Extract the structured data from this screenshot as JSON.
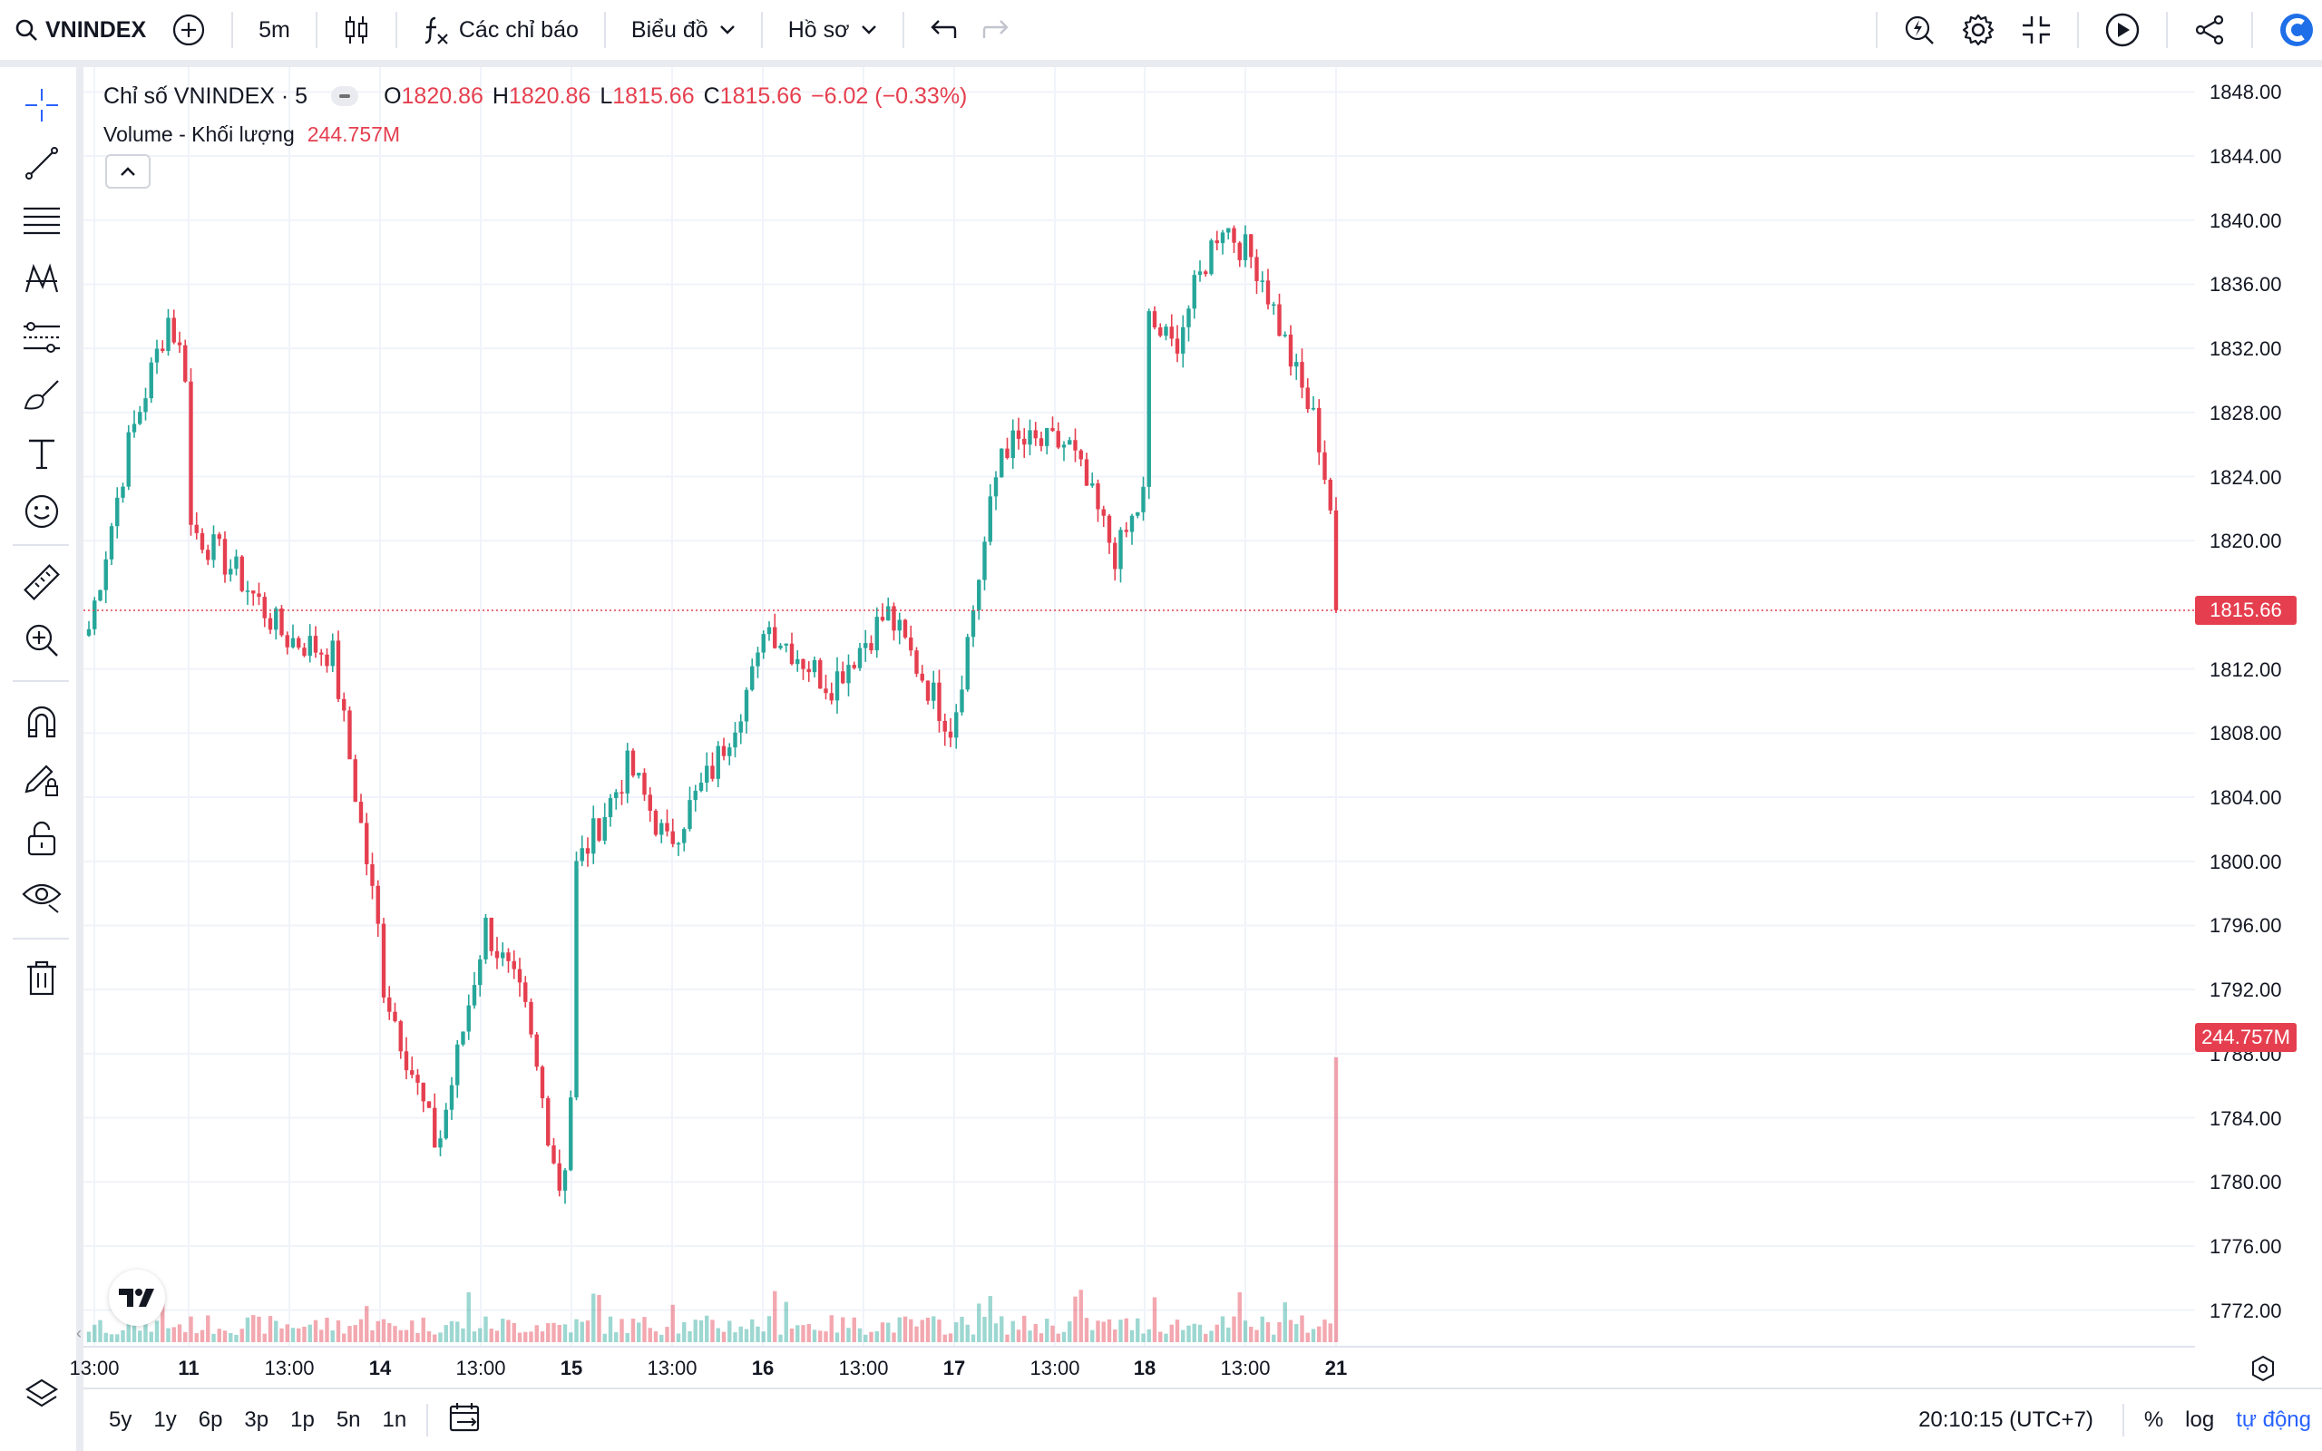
{
  "toolbar": {
    "symbol": "VNINDEX",
    "interval": "5m",
    "indicators_label": "Các chỉ báo",
    "chart_label": "Biểu đồ",
    "profile_label": "Hồ sơ"
  },
  "legend": {
    "title": "Chỉ số VNINDEX · 5",
    "open_label": "O",
    "open": "1820.86",
    "high_label": "H",
    "high": "1820.86",
    "low_label": "L",
    "low": "1815.66",
    "close_label": "C",
    "close": "1815.66",
    "change": "−6.02 (−0.33%)",
    "volume_label": "Volume - Khối lượng",
    "volume_value": "244.757M"
  },
  "price_axis": {
    "labels": [
      "1848.00",
      "1844.00",
      "1840.00",
      "1836.00",
      "1832.00",
      "1828.00",
      "1824.00",
      "1820.00",
      "1812.00",
      "1808.00",
      "1804.00",
      "1800.00",
      "1796.00",
      "1792.00",
      "1788.00",
      "1784.00",
      "1780.00",
      "1776.00",
      "1772.00"
    ],
    "last_price_tag": "1815.66",
    "volume_tag": "244.757M"
  },
  "time_axis": {
    "labels": [
      {
        "text": "13:00",
        "bold": false
      },
      {
        "text": "11",
        "bold": true
      },
      {
        "text": "13:00",
        "bold": false
      },
      {
        "text": "14",
        "bold": true
      },
      {
        "text": "13:00",
        "bold": false
      },
      {
        "text": "15",
        "bold": true
      },
      {
        "text": "13:00",
        "bold": false
      },
      {
        "text": "16",
        "bold": true
      },
      {
        "text": "13:00",
        "bold": false
      },
      {
        "text": "17",
        "bold": true
      },
      {
        "text": "13:00",
        "bold": false
      },
      {
        "text": "18",
        "bold": true
      },
      {
        "text": "13:00",
        "bold": false
      },
      {
        "text": "21",
        "bold": true
      }
    ]
  },
  "bottombar": {
    "ranges": [
      "5y",
      "1y",
      "6p",
      "3p",
      "1p",
      "5n",
      "1n"
    ],
    "clock": "20:10:15 (UTC+7)",
    "percent": "%",
    "log": "log",
    "auto": "tự động"
  },
  "colors": {
    "up": "#26a69a",
    "down": "#e53f4f",
    "grid": "#f0f3fa",
    "accent": "#2962ff"
  },
  "chart_data": {
    "type": "candlestick",
    "symbol": "VNINDEX",
    "interval": "5m",
    "ylim": [
      1770,
      1850
    ],
    "last_close": 1815.66,
    "waypoints": [
      {
        "day": "10",
        "t": 0.0,
        "price": 1814.5
      },
      {
        "day": "10",
        "t": 0.4,
        "price": 1826.0
      },
      {
        "day": "10",
        "t": 0.8,
        "price": 1834.0
      },
      {
        "day": "10",
        "t": 1.0,
        "price": 1830.0
      },
      {
        "day": "11",
        "t": 0.0,
        "price": 1821.0
      },
      {
        "day": "11",
        "t": 0.25,
        "price": 1818.0
      },
      {
        "day": "11",
        "t": 0.5,
        "price": 1814.0
      },
      {
        "day": "11",
        "t": 0.75,
        "price": 1813.0
      },
      {
        "day": "11",
        "t": 1.0,
        "price": 1795.0
      },
      {
        "day": "14",
        "t": 0.0,
        "price": 1793.0
      },
      {
        "day": "14",
        "t": 0.3,
        "price": 1782.0
      },
      {
        "day": "14",
        "t": 0.55,
        "price": 1796.0
      },
      {
        "day": "14",
        "t": 0.75,
        "price": 1791.0
      },
      {
        "day": "14",
        "t": 0.95,
        "price": 1779.0
      },
      {
        "day": "14",
        "t": 1.0,
        "price": 1786.0
      },
      {
        "day": "15",
        "t": 0.0,
        "price": 1799.0
      },
      {
        "day": "15",
        "t": 0.3,
        "price": 1806.0
      },
      {
        "day": "15",
        "t": 0.5,
        "price": 1801.0
      },
      {
        "day": "15",
        "t": 0.75,
        "price": 1806.0
      },
      {
        "day": "15",
        "t": 1.0,
        "price": 1813.0
      },
      {
        "day": "16",
        "t": 0.0,
        "price": 1815.0
      },
      {
        "day": "16",
        "t": 0.35,
        "price": 1811.0
      },
      {
        "day": "16",
        "t": 0.65,
        "price": 1815.5
      },
      {
        "day": "16",
        "t": 1.0,
        "price": 1808.0
      },
      {
        "day": "17",
        "t": 0.0,
        "price": 1809.0
      },
      {
        "day": "17",
        "t": 0.25,
        "price": 1826.0
      },
      {
        "day": "17",
        "t": 0.6,
        "price": 1826.0
      },
      {
        "day": "17",
        "t": 0.85,
        "price": 1819.0
      },
      {
        "day": "17",
        "t": 1.0,
        "price": 1823.0
      },
      {
        "day": "18",
        "t": 0.0,
        "price": 1834.0
      },
      {
        "day": "18",
        "t": 0.15,
        "price": 1832.0
      },
      {
        "day": "18",
        "t": 0.4,
        "price": 1840.0
      },
      {
        "day": "18",
        "t": 0.6,
        "price": 1837.0
      },
      {
        "day": "18",
        "t": 0.8,
        "price": 1830.0
      },
      {
        "day": "18",
        "t": 0.9,
        "price": 1827.0
      },
      {
        "day": "18",
        "t": 1.0,
        "price": 1820.0
      },
      {
        "day": "21",
        "t": 0.0,
        "price": 1815.66
      }
    ]
  }
}
